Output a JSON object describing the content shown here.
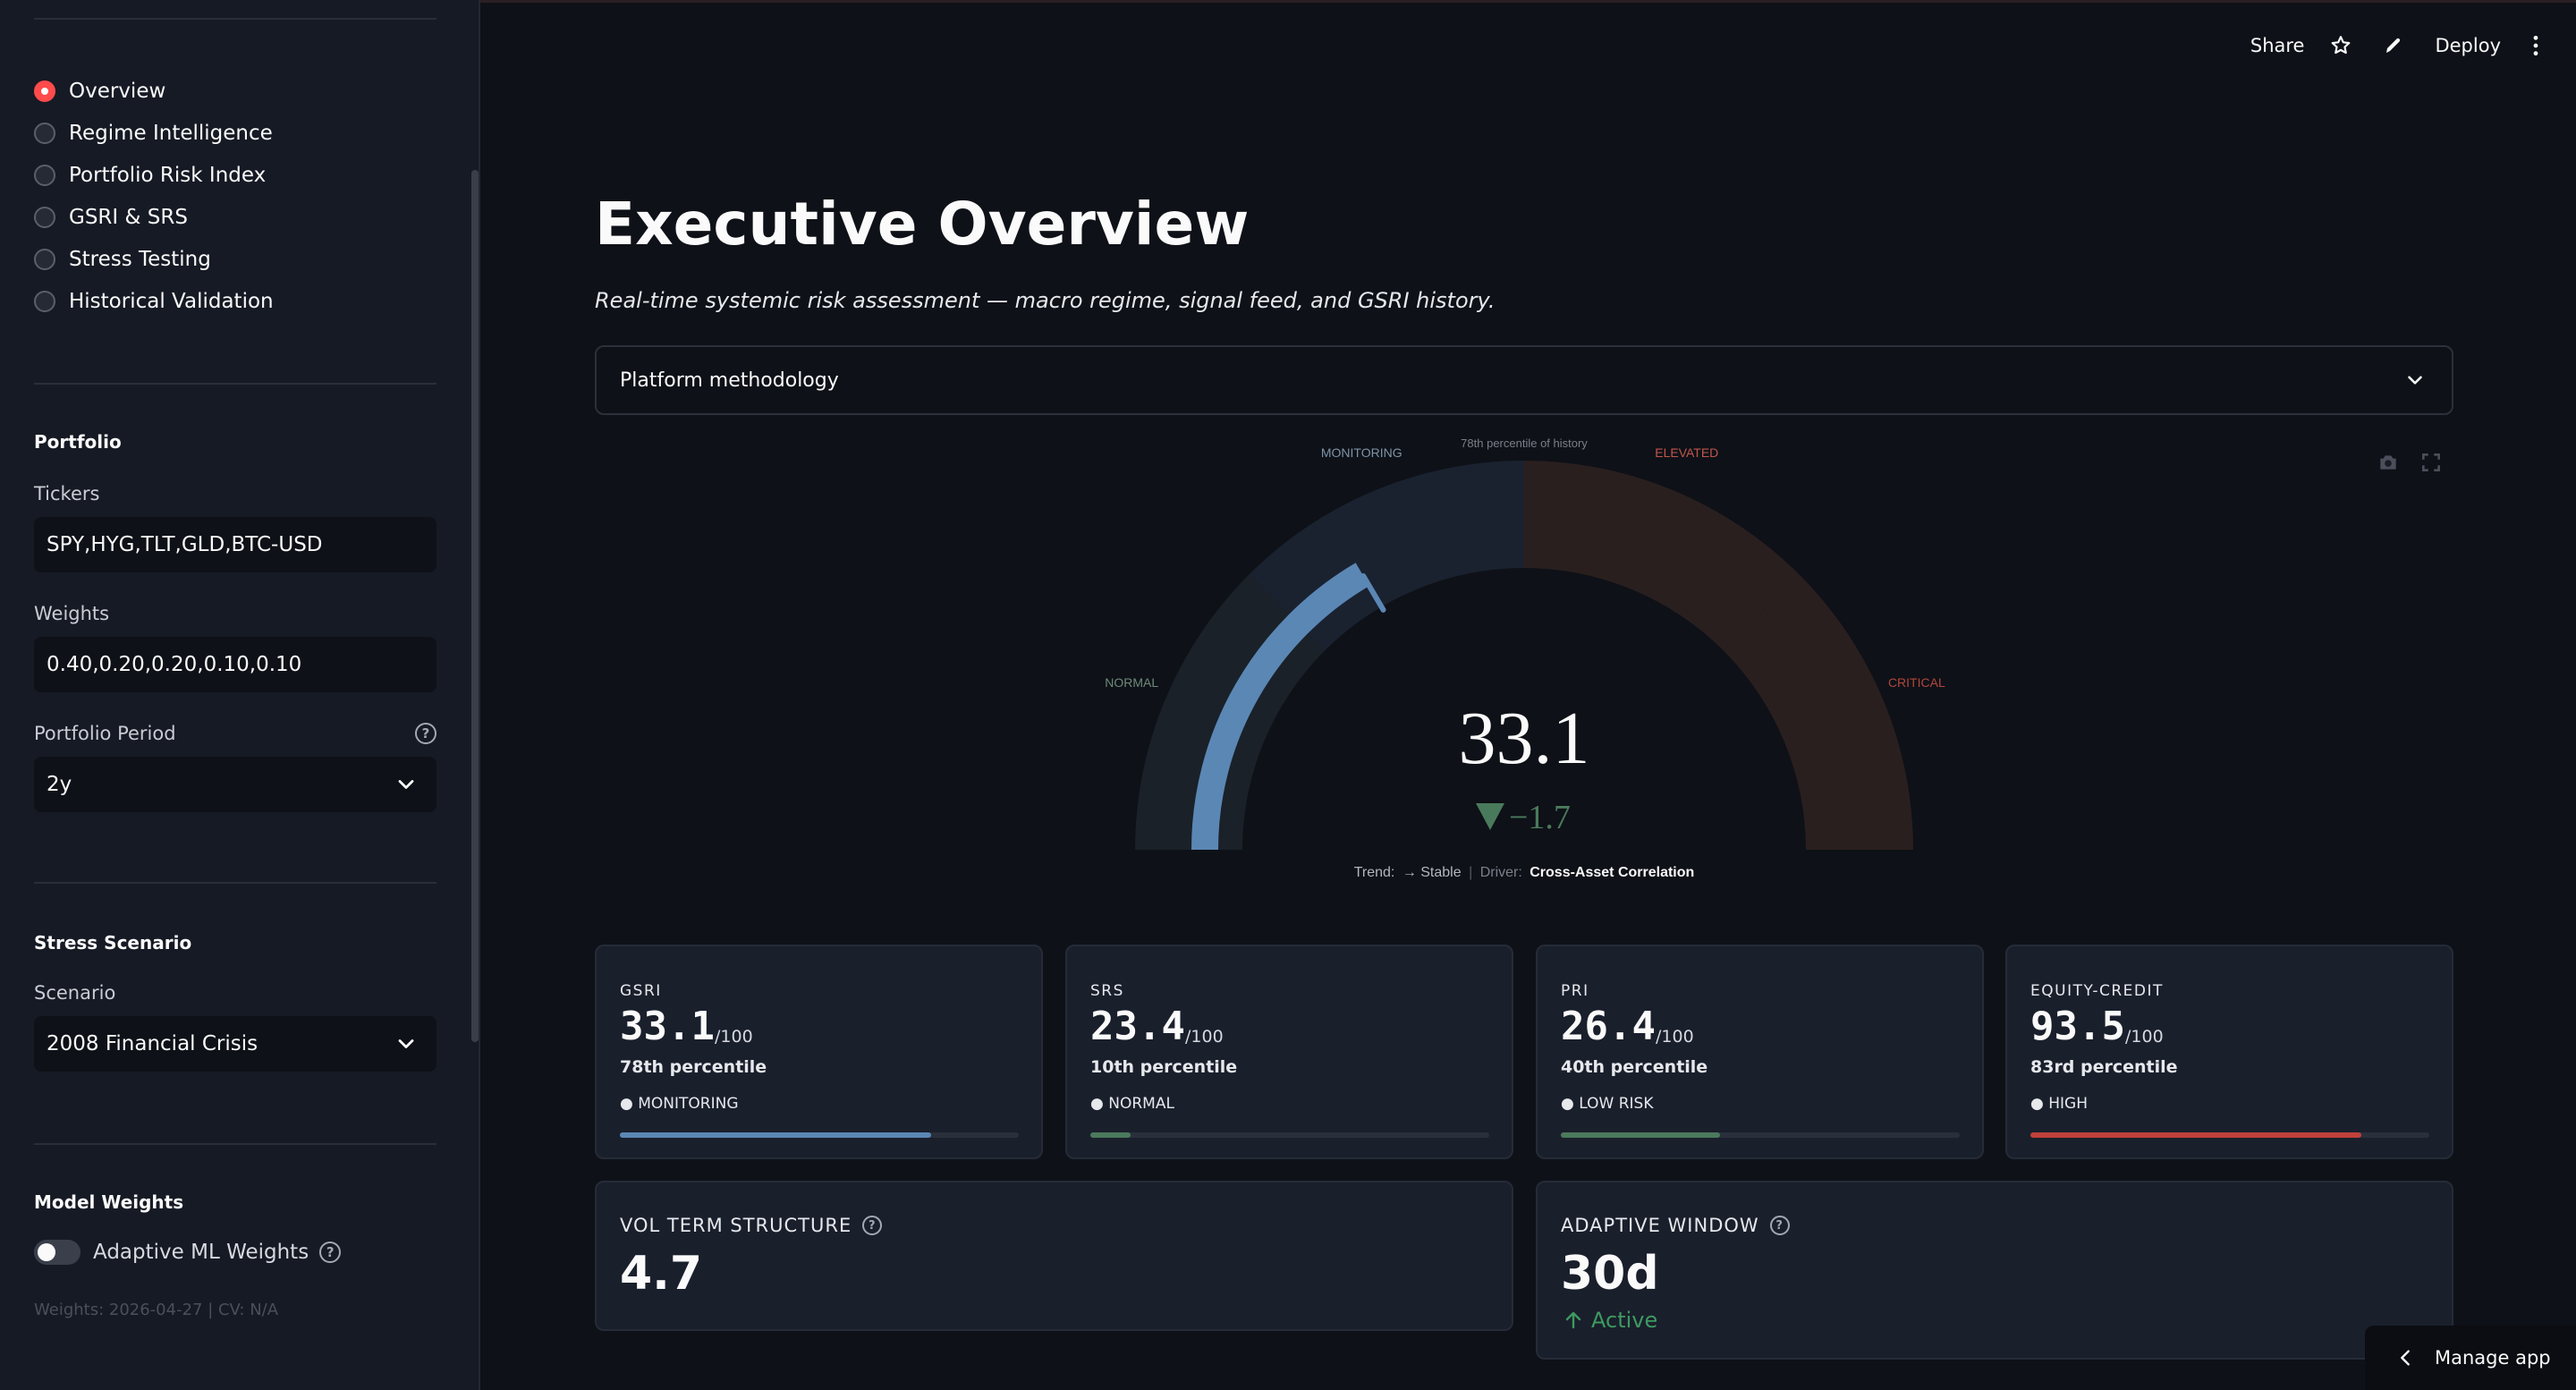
{
  "nav": {
    "items": [
      {
        "label": "Overview",
        "selected": true
      },
      {
        "label": "Regime Intelligence",
        "selected": false
      },
      {
        "label": "Portfolio Risk Index",
        "selected": false
      },
      {
        "label": "GSRI & SRS",
        "selected": false
      },
      {
        "label": "Stress Testing",
        "selected": false
      },
      {
        "label": "Historical Validation",
        "selected": false
      }
    ]
  },
  "portfolio": {
    "heading": "Portfolio",
    "tickers_label": "Tickers",
    "tickers_value": "SPY,HYG,TLT,GLD,BTC-USD",
    "weights_label": "Weights",
    "weights_value": "0.40,0.20,0.20,0.10,0.10",
    "period_label": "Portfolio Period",
    "period_value": "2y"
  },
  "stress": {
    "heading": "Stress Scenario",
    "scenario_label": "Scenario",
    "scenario_value": "2008 Financial Crisis"
  },
  "model": {
    "heading": "Model Weights",
    "toggle_label": "Adaptive ML Weights",
    "toggle_on": false,
    "note": "Weights: 2026-04-27 | CV: N/A"
  },
  "header": {
    "share": "Share",
    "deploy": "Deploy"
  },
  "page": {
    "title": "Executive Overview",
    "subtitle": "Real-time systemic risk assessment — macro regime, signal feed, and GSRI history.",
    "expander_label": "Platform methodology"
  },
  "gauge": {
    "value": 33.1,
    "value_text": "33.1",
    "delta_text": "−1.7",
    "max": 100,
    "percentile_note": "78th percentile of history",
    "zones": [
      {
        "label": "NORMAL",
        "from": 0,
        "to": 25,
        "color": "#1a2128",
        "label_color": "#6f8a7a"
      },
      {
        "label": "MONITORING",
        "from": 25,
        "to": 50,
        "color": "#1a2230",
        "label_color": "#7f93a8"
      },
      {
        "label": "ELEVATED",
        "from": 50,
        "to": 75,
        "color": "#2a1f1f",
        "label_color": "#c0564c"
      },
      {
        "label": "CRITICAL",
        "from": 75,
        "to": 100,
        "color": "#2a1f1f",
        "label_color": "#b0463e"
      }
    ],
    "bar_color": "#5b87b5",
    "trend_label": "Trend:",
    "trend_value": "→ Stable",
    "driver_label": "Driver:",
    "driver_value": "Cross-Asset Correlation"
  },
  "metrics": [
    {
      "label": "GSRI",
      "value": "33.1",
      "max": "/100",
      "percentile": "78th percentile",
      "status": "● MONITORING",
      "fill": 0.78,
      "color": "#5b87b5"
    },
    {
      "label": "SRS",
      "value": "23.4",
      "max": "/100",
      "percentile": "10th percentile",
      "status": "● NORMAL",
      "fill": 0.1,
      "color": "#4a7a5c"
    },
    {
      "label": "PRI",
      "value": "26.4",
      "max": "/100",
      "percentile": "40th percentile",
      "status": "● LOW RISK",
      "fill": 0.4,
      "color": "#4a7a5c"
    },
    {
      "label": "EQUITY-CREDIT",
      "value": "93.5",
      "max": "/100",
      "percentile": "83rd percentile",
      "status": "● HIGH",
      "fill": 0.83,
      "color": "#c0403a"
    }
  ],
  "secondary": [
    {
      "label": "VOL TERM STRUCTURE",
      "value": "4.7"
    },
    {
      "label": "ADAPTIVE WINDOW",
      "value": "30d",
      "delta": "Active"
    }
  ],
  "footer": {
    "manage": "Manage app"
  }
}
